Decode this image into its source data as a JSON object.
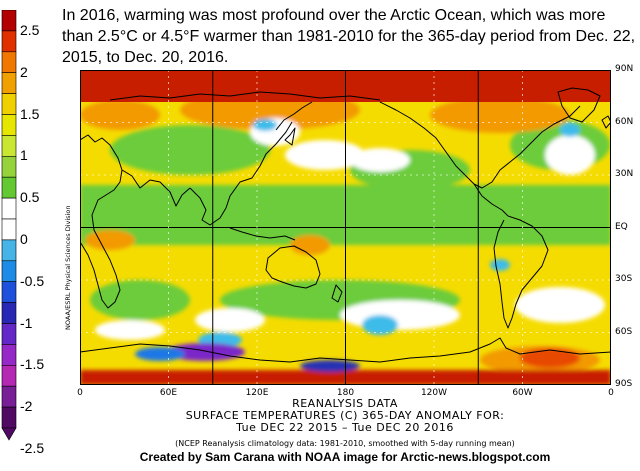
{
  "title": "In 2016, warming was most profound over the Arctic Ocean, which was more than 2.5°C or 4.5°F warmer than 1981-2010 for the 365-day period from Dec. 22, 2015, to Dec. 20, 2016.",
  "colorbar": {
    "labels": [
      "2.5",
      "2",
      "1.5",
      "1",
      "0.5",
      "0",
      "-0.5",
      "-1",
      "-1.5",
      "-2",
      "-2.5"
    ],
    "colors": [
      "#b30000",
      "#e03000",
      "#f07800",
      "#f0a000",
      "#f0d000",
      "#e6e600",
      "#c8e632",
      "#96d23c",
      "#64c832",
      "#ffffff",
      "#ffffff",
      "#46b4e6",
      "#1e8ce6",
      "#1e50dc",
      "#2828b4",
      "#6428c8",
      "#9628c8",
      "#b428b4",
      "#781e96",
      "#500a64"
    ]
  },
  "map": {
    "lat_labels": [
      "90N",
      "60N",
      "30N",
      "EQ",
      "30S",
      "60S",
      "90S"
    ],
    "lon_labels": [
      "0",
      "60E",
      "120E",
      "180",
      "120W",
      "60W",
      "0"
    ],
    "side_credit": "NOAA/ESRL Physical Sciences Division",
    "palette": {
      "deep_red": "#c81e00",
      "red": "#e84a00",
      "orange": "#f29a00",
      "yellow": "#f5dc00",
      "yellow_green": "#c8e632",
      "green": "#6ccc3a",
      "white": "#ffffff",
      "cyan": "#3cbcea",
      "blue": "#1e78e6",
      "navy": "#2832b4",
      "purple": "#7a28c8"
    }
  },
  "footer": {
    "line1": "REANALYSIS DATA",
    "line2": "SURFACE TEMPERATURES (C)   365-DAY ANOMALY FOR:",
    "line3": "Tue DEC 22 2015 – Tue DEC 20 2016",
    "line4": "(NCEP Reanalysis climatology data: 1981-2010, smoothed with 5-day running mean)",
    "credit": "Created by Sam Carana with NOAA image for Arctic-news.blogspot.com"
  }
}
